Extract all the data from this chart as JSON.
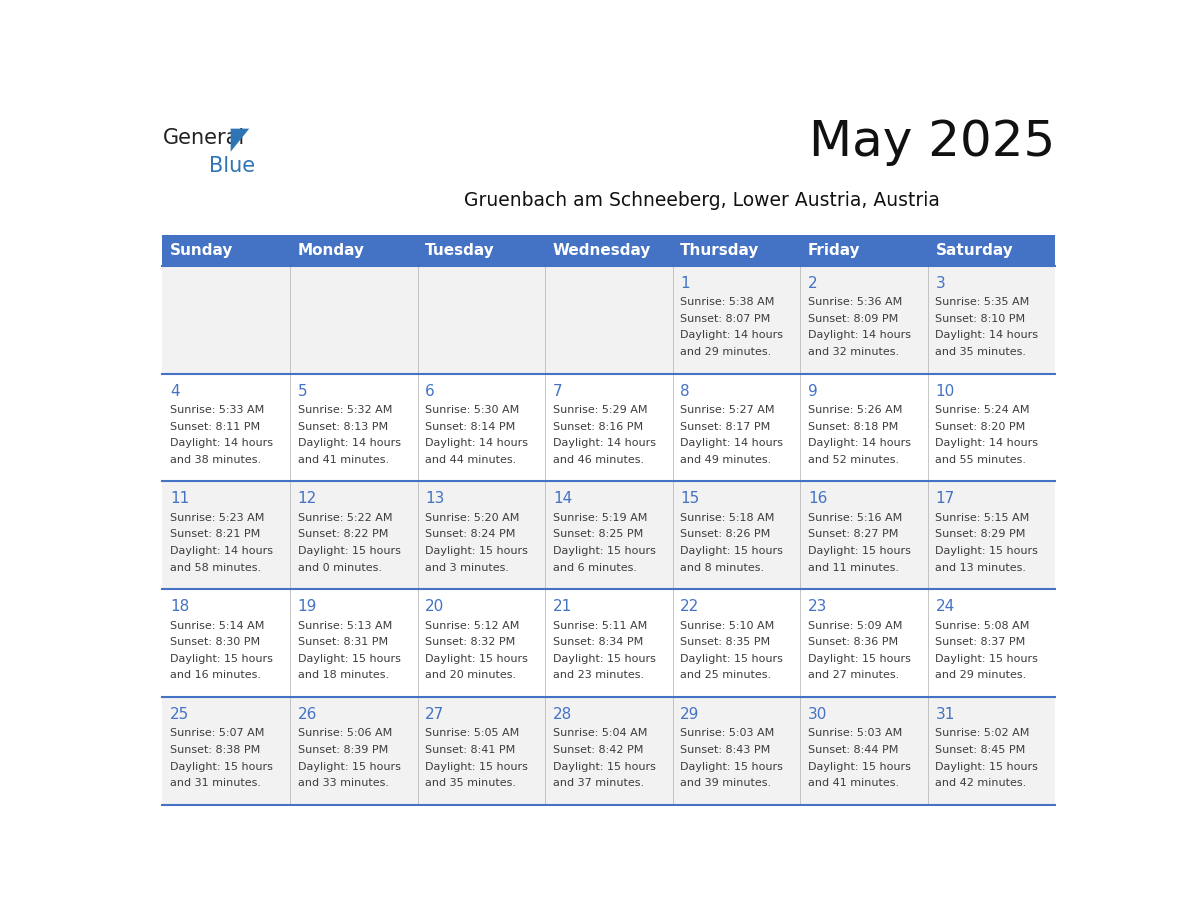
{
  "title": "May 2025",
  "subtitle": "Gruenbach am Schneeberg, Lower Austria, Austria",
  "days_of_week": [
    "Sunday",
    "Monday",
    "Tuesday",
    "Wednesday",
    "Thursday",
    "Friday",
    "Saturday"
  ],
  "header_bg": "#4472C4",
  "header_text": "#FFFFFF",
  "row_bg_odd": "#F2F2F2",
  "row_bg_even": "#FFFFFF",
  "day_num_color": "#4472C4",
  "cell_text_color": "#3D3D3D",
  "grid_line_color": "#4472C4",
  "logo_general_color": "#222222",
  "logo_blue_color": "#2E75B6",
  "calendar": [
    [
      null,
      null,
      null,
      null,
      {
        "day": 1,
        "sunrise": "5:38 AM",
        "sunset": "8:07 PM",
        "daylight": "14 hours and 29 minutes."
      },
      {
        "day": 2,
        "sunrise": "5:36 AM",
        "sunset": "8:09 PM",
        "daylight": "14 hours and 32 minutes."
      },
      {
        "day": 3,
        "sunrise": "5:35 AM",
        "sunset": "8:10 PM",
        "daylight": "14 hours and 35 minutes."
      }
    ],
    [
      {
        "day": 4,
        "sunrise": "5:33 AM",
        "sunset": "8:11 PM",
        "daylight": "14 hours and 38 minutes."
      },
      {
        "day": 5,
        "sunrise": "5:32 AM",
        "sunset": "8:13 PM",
        "daylight": "14 hours and 41 minutes."
      },
      {
        "day": 6,
        "sunrise": "5:30 AM",
        "sunset": "8:14 PM",
        "daylight": "14 hours and 44 minutes."
      },
      {
        "day": 7,
        "sunrise": "5:29 AM",
        "sunset": "8:16 PM",
        "daylight": "14 hours and 46 minutes."
      },
      {
        "day": 8,
        "sunrise": "5:27 AM",
        "sunset": "8:17 PM",
        "daylight": "14 hours and 49 minutes."
      },
      {
        "day": 9,
        "sunrise": "5:26 AM",
        "sunset": "8:18 PM",
        "daylight": "14 hours and 52 minutes."
      },
      {
        "day": 10,
        "sunrise": "5:24 AM",
        "sunset": "8:20 PM",
        "daylight": "14 hours and 55 minutes."
      }
    ],
    [
      {
        "day": 11,
        "sunrise": "5:23 AM",
        "sunset": "8:21 PM",
        "daylight": "14 hours and 58 minutes."
      },
      {
        "day": 12,
        "sunrise": "5:22 AM",
        "sunset": "8:22 PM",
        "daylight": "15 hours and 0 minutes."
      },
      {
        "day": 13,
        "sunrise": "5:20 AM",
        "sunset": "8:24 PM",
        "daylight": "15 hours and 3 minutes."
      },
      {
        "day": 14,
        "sunrise": "5:19 AM",
        "sunset": "8:25 PM",
        "daylight": "15 hours and 6 minutes."
      },
      {
        "day": 15,
        "sunrise": "5:18 AM",
        "sunset": "8:26 PM",
        "daylight": "15 hours and 8 minutes."
      },
      {
        "day": 16,
        "sunrise": "5:16 AM",
        "sunset": "8:27 PM",
        "daylight": "15 hours and 11 minutes."
      },
      {
        "day": 17,
        "sunrise": "5:15 AM",
        "sunset": "8:29 PM",
        "daylight": "15 hours and 13 minutes."
      }
    ],
    [
      {
        "day": 18,
        "sunrise": "5:14 AM",
        "sunset": "8:30 PM",
        "daylight": "15 hours and 16 minutes."
      },
      {
        "day": 19,
        "sunrise": "5:13 AM",
        "sunset": "8:31 PM",
        "daylight": "15 hours and 18 minutes."
      },
      {
        "day": 20,
        "sunrise": "5:12 AM",
        "sunset": "8:32 PM",
        "daylight": "15 hours and 20 minutes."
      },
      {
        "day": 21,
        "sunrise": "5:11 AM",
        "sunset": "8:34 PM",
        "daylight": "15 hours and 23 minutes."
      },
      {
        "day": 22,
        "sunrise": "5:10 AM",
        "sunset": "8:35 PM",
        "daylight": "15 hours and 25 minutes."
      },
      {
        "day": 23,
        "sunrise": "5:09 AM",
        "sunset": "8:36 PM",
        "daylight": "15 hours and 27 minutes."
      },
      {
        "day": 24,
        "sunrise": "5:08 AM",
        "sunset": "8:37 PM",
        "daylight": "15 hours and 29 minutes."
      }
    ],
    [
      {
        "day": 25,
        "sunrise": "5:07 AM",
        "sunset": "8:38 PM",
        "daylight": "15 hours and 31 minutes."
      },
      {
        "day": 26,
        "sunrise": "5:06 AM",
        "sunset": "8:39 PM",
        "daylight": "15 hours and 33 minutes."
      },
      {
        "day": 27,
        "sunrise": "5:05 AM",
        "sunset": "8:41 PM",
        "daylight": "15 hours and 35 minutes."
      },
      {
        "day": 28,
        "sunrise": "5:04 AM",
        "sunset": "8:42 PM",
        "daylight": "15 hours and 37 minutes."
      },
      {
        "day": 29,
        "sunrise": "5:03 AM",
        "sunset": "8:43 PM",
        "daylight": "15 hours and 39 minutes."
      },
      {
        "day": 30,
        "sunrise": "5:03 AM",
        "sunset": "8:44 PM",
        "daylight": "15 hours and 41 minutes."
      },
      {
        "day": 31,
        "sunrise": "5:02 AM",
        "sunset": "8:45 PM",
        "daylight": "15 hours and 42 minutes."
      }
    ]
  ]
}
